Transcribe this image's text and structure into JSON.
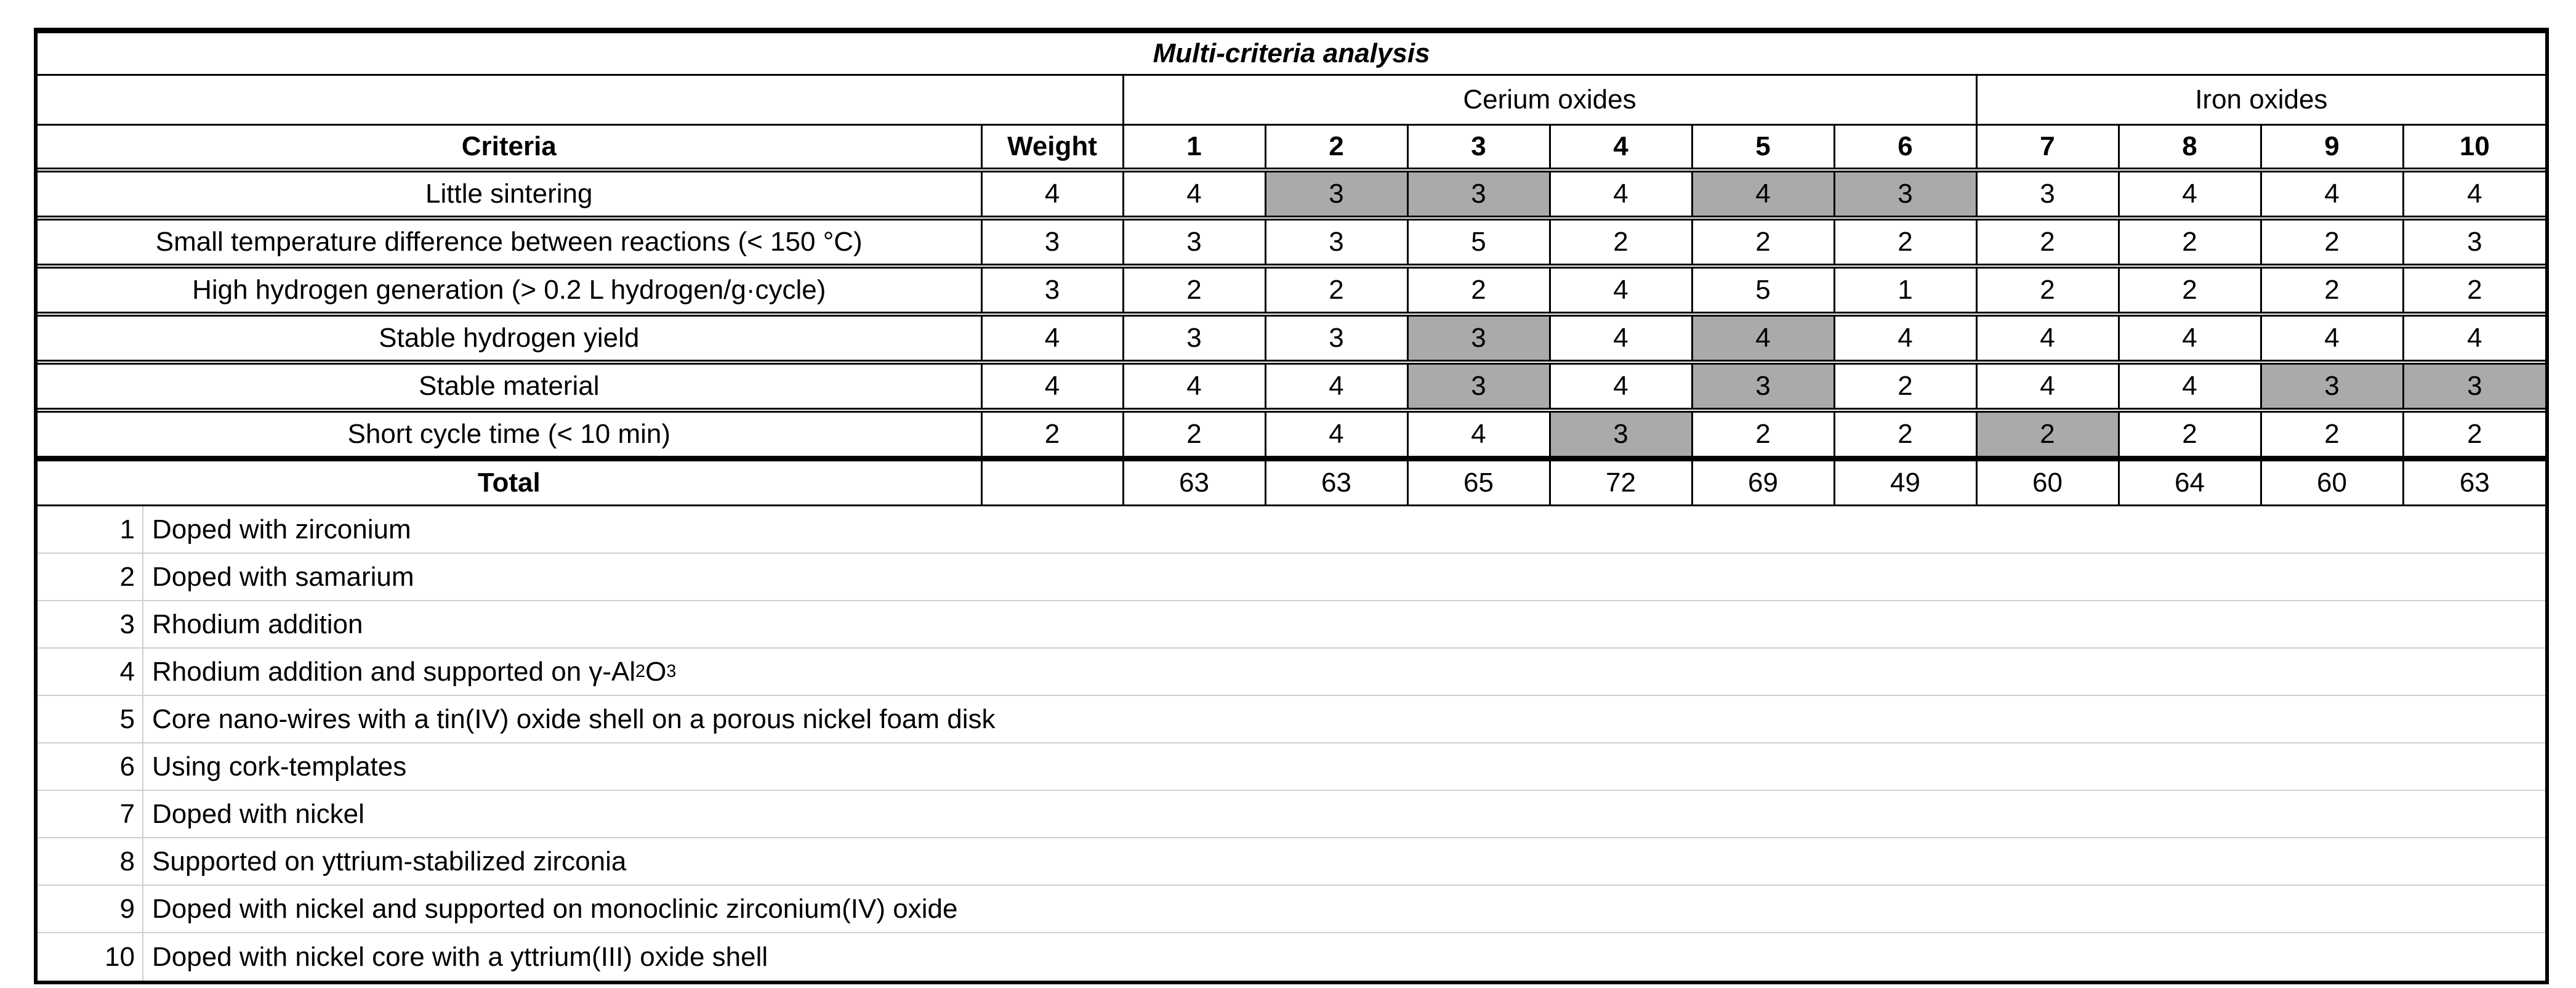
{
  "title": "Multi-criteria analysis",
  "groups": [
    {
      "label": "Cerium oxides",
      "span": 6
    },
    {
      "label": "Iron oxides",
      "span": 4
    }
  ],
  "header": {
    "criteria": "Criteria",
    "weight": "Weight",
    "columns": [
      "1",
      "2",
      "3",
      "4",
      "5",
      "6",
      "7",
      "8",
      "9",
      "10"
    ]
  },
  "rows": [
    {
      "criteria": "Little sintering",
      "weight": "4",
      "scores": [
        "4",
        "3",
        "3",
        "4",
        "4",
        "3",
        "3",
        "4",
        "4",
        "4"
      ],
      "highlighted": [
        2,
        3,
        5,
        6
      ]
    },
    {
      "criteria": "Small temperature difference between reactions (< 150 °C)",
      "weight": "3",
      "scores": [
        "3",
        "3",
        "5",
        "2",
        "2",
        "2",
        "2",
        "2",
        "2",
        "3"
      ],
      "highlighted": []
    },
    {
      "criteria": "High hydrogen generation (> 0.2 L hydrogen/g·cycle)",
      "weight": "3",
      "scores": [
        "2",
        "2",
        "2",
        "4",
        "5",
        "1",
        "2",
        "2",
        "2",
        "2"
      ],
      "highlighted": []
    },
    {
      "criteria": "Stable hydrogen yield",
      "weight": "4",
      "scores": [
        "3",
        "3",
        "3",
        "4",
        "4",
        "4",
        "4",
        "4",
        "4",
        "4"
      ],
      "highlighted": [
        3,
        5
      ]
    },
    {
      "criteria": "Stable material",
      "weight": "4",
      "scores": [
        "4",
        "4",
        "3",
        "4",
        "3",
        "2",
        "4",
        "4",
        "3",
        "3"
      ],
      "highlighted": [
        3,
        5,
        9,
        10
      ]
    },
    {
      "criteria": "Short cycle time (< 10 min)",
      "weight": "2",
      "scores": [
        "2",
        "4",
        "4",
        "3",
        "2",
        "2",
        "2",
        "2",
        "2",
        "2"
      ],
      "highlighted": [
        4,
        7
      ]
    }
  ],
  "total": {
    "label": "Total",
    "values": [
      "63",
      "63",
      "65",
      "72",
      "69",
      "49",
      "60",
      "64",
      "60",
      "63"
    ]
  },
  "legend": [
    {
      "num": "1",
      "text": "Doped with zirconium"
    },
    {
      "num": "2",
      "text": "Doped with samarium"
    },
    {
      "num": "3",
      "text": "Rhodium addition"
    },
    {
      "num": "4",
      "text": "Rhodium addition and supported on γ-Al₂O₃"
    },
    {
      "num": "5",
      "text": "Core nano-wires with a tin(IV) oxide shell on a porous nickel foam disk"
    },
    {
      "num": "6",
      "text": "Using cork-templates"
    },
    {
      "num": "7",
      "text": "Doped with nickel"
    },
    {
      "num": "8",
      "text": "Supported on yttrium-stabilized zirconia"
    },
    {
      "num": "9",
      "text": "Doped with nickel and supported on monoclinic zirconium(IV) oxide"
    },
    {
      "num": "10",
      "text": "Doped with nickel core with a yttrium(III) oxide shell"
    }
  ],
  "colors": {
    "highlight": "#ACA9A9",
    "legend_divider": "#CFCFCF",
    "border": "#000000",
    "text": "#000000",
    "background": "#FFFFFF"
  }
}
